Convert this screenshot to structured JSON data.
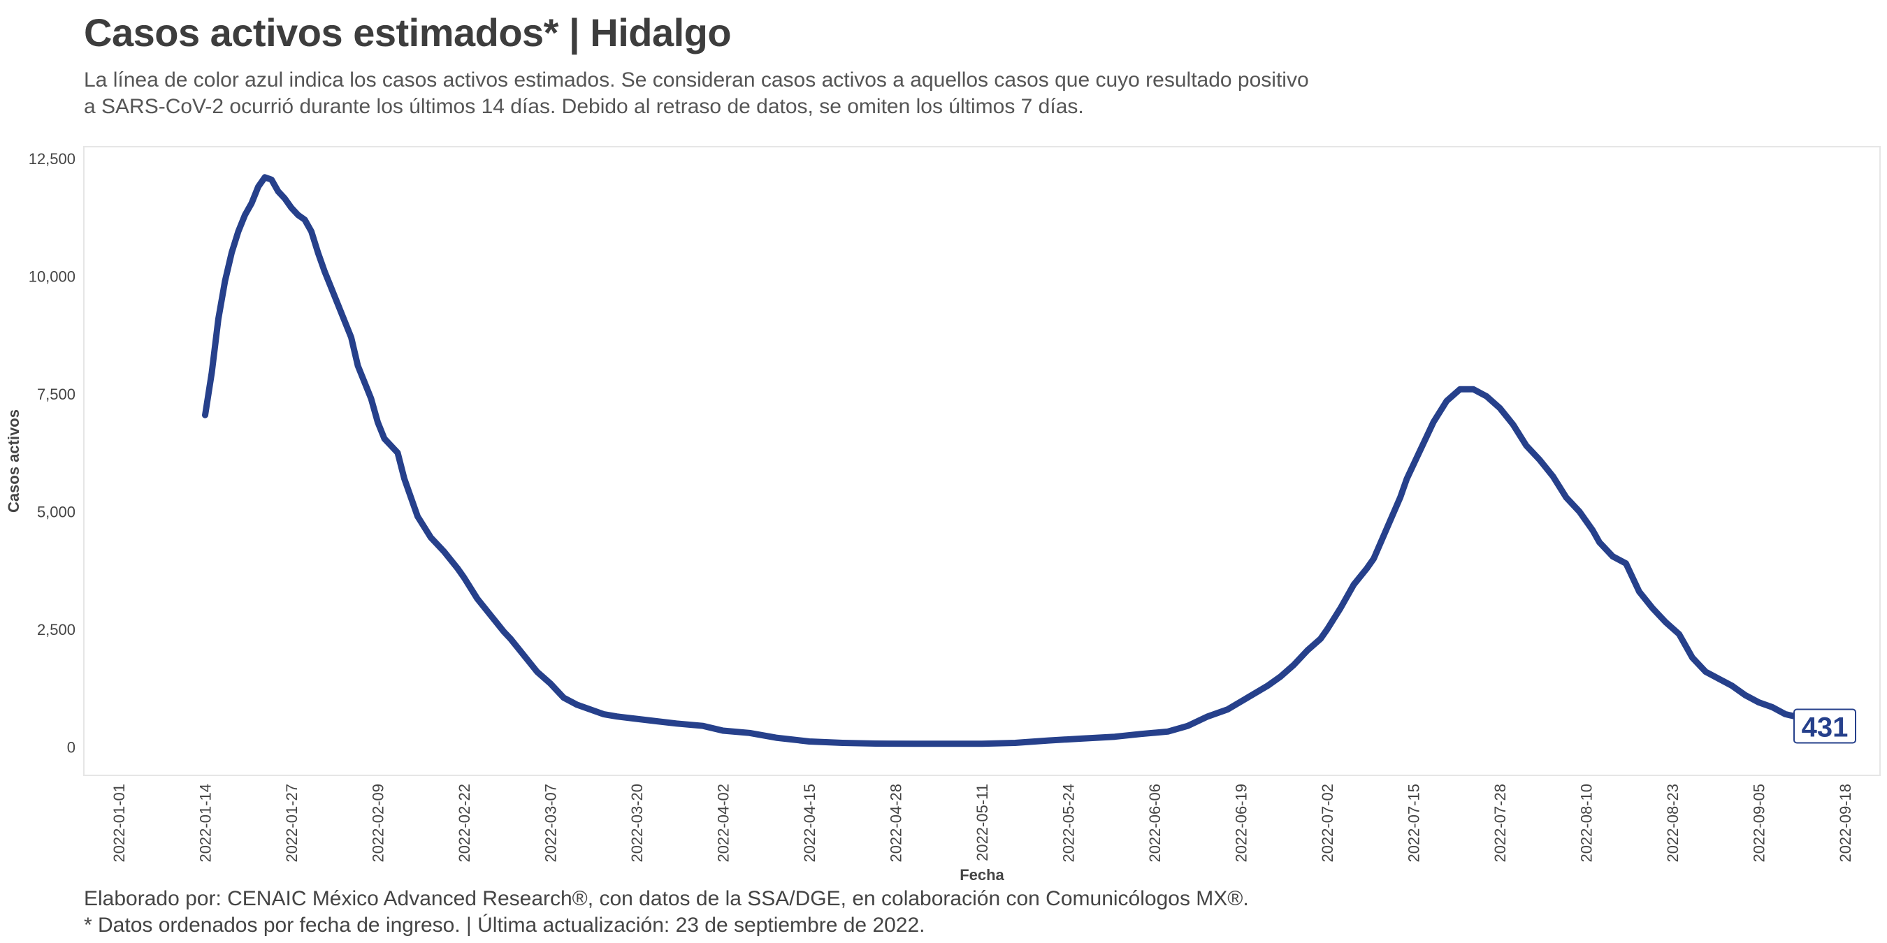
{
  "header": {
    "title": "Casos activos estimados* | Hidalgo",
    "subtitle_line1": "La línea de color azul indica los casos activos estimados. Se consideran casos activos a aquellos casos que cuyo resultado positivo",
    "subtitle_line2": "a SARS-CoV-2 ocurrió durante los últimos 14 días. Debido al retraso de datos, se omiten los últimos 7 días."
  },
  "footer": {
    "line1": "Elaborado por: CENAIC México Advanced Research®, con datos de la SSA/DGE, en colaboración con Comunicólogos MX®.",
    "line2": "* Datos ordenados por fecha de ingreso. | Última actualización: 23 de septiembre de 2022."
  },
  "colors": {
    "line": "#26408b",
    "panel_border": "#e6e6e6"
  },
  "chart_data": {
    "type": "line",
    "xlabel": "Fecha",
    "ylabel": "Casos activos",
    "ylim": [
      -600,
      12750
    ],
    "xlim": [
      "2022-01-01",
      "2022-09-18"
    ],
    "x_ticks": [
      "2022-01-01",
      "2022-01-14",
      "2022-01-27",
      "2022-02-09",
      "2022-02-22",
      "2022-03-07",
      "2022-03-20",
      "2022-04-02",
      "2022-04-15",
      "2022-04-28",
      "2022-05-11",
      "2022-05-24",
      "2022-06-06",
      "2022-06-19",
      "2022-07-02",
      "2022-07-15",
      "2022-07-28",
      "2022-08-10",
      "2022-08-23",
      "2022-09-05",
      "2022-09-18"
    ],
    "y_ticks": [
      0,
      2500,
      5000,
      7500,
      10000,
      12500
    ],
    "y_tick_labels": [
      "0",
      "2,500",
      "5,000",
      "7,500",
      "10,000",
      "12,500"
    ],
    "grid": false,
    "end_label": "431",
    "end_point": {
      "x": "2022-09-16",
      "y": 431
    },
    "x": [
      "2022-01-14",
      "2022-01-15",
      "2022-01-16",
      "2022-01-17",
      "2022-01-18",
      "2022-01-19",
      "2022-01-20",
      "2022-01-21",
      "2022-01-22",
      "2022-01-23",
      "2022-01-24",
      "2022-01-25",
      "2022-01-26",
      "2022-01-27",
      "2022-01-28",
      "2022-01-29",
      "2022-01-30",
      "2022-01-31",
      "2022-02-01",
      "2022-02-02",
      "2022-02-03",
      "2022-02-05",
      "2022-02-06",
      "2022-02-07",
      "2022-02-08",
      "2022-02-09",
      "2022-02-10",
      "2022-02-11",
      "2022-02-12",
      "2022-02-13",
      "2022-02-14",
      "2022-02-15",
      "2022-02-17",
      "2022-02-19",
      "2022-02-21",
      "2022-02-22",
      "2022-02-24",
      "2022-02-26",
      "2022-02-28",
      "2022-03-01",
      "2022-03-03",
      "2022-03-05",
      "2022-03-07",
      "2022-03-09",
      "2022-03-11",
      "2022-03-13",
      "2022-03-15",
      "2022-03-17",
      "2022-03-20",
      "2022-03-23",
      "2022-03-26",
      "2022-03-30",
      "2022-04-02",
      "2022-04-06",
      "2022-04-10",
      "2022-04-15",
      "2022-04-20",
      "2022-04-25",
      "2022-05-01",
      "2022-05-06",
      "2022-05-11",
      "2022-05-16",
      "2022-05-21",
      "2022-05-26",
      "2022-05-31",
      "2022-06-04",
      "2022-06-08",
      "2022-06-11",
      "2022-06-14",
      "2022-06-17",
      "2022-06-20",
      "2022-06-23",
      "2022-06-25",
      "2022-06-27",
      "2022-06-29",
      "2022-07-01",
      "2022-07-02",
      "2022-07-04",
      "2022-07-06",
      "2022-07-08",
      "2022-07-09",
      "2022-07-11",
      "2022-07-13",
      "2022-07-14",
      "2022-07-15",
      "2022-07-16",
      "2022-07-18",
      "2022-07-20",
      "2022-07-22",
      "2022-07-24",
      "2022-07-26",
      "2022-07-28",
      "2022-07-30",
      "2022-08-01",
      "2022-08-03",
      "2022-08-05",
      "2022-08-07",
      "2022-08-09",
      "2022-08-11",
      "2022-08-12",
      "2022-08-14",
      "2022-08-16",
      "2022-08-18",
      "2022-08-20",
      "2022-08-22",
      "2022-08-24",
      "2022-08-26",
      "2022-08-28",
      "2022-08-30",
      "2022-09-01",
      "2022-09-03",
      "2022-09-05",
      "2022-09-07",
      "2022-09-09",
      "2022-09-12",
      "2022-09-14",
      "2022-09-16"
    ],
    "series": [
      {
        "values": [
          7050,
          7950,
          9100,
          9900,
          10500,
          10950,
          11300,
          11550,
          11900,
          12100,
          12050,
          11800,
          11650,
          11450,
          11300,
          11200,
          10950,
          10500,
          10100,
          9750,
          9400,
          8700,
          8100,
          7750,
          7400,
          6900,
          6550,
          6400,
          6250,
          5700,
          5300,
          4900,
          4450,
          4150,
          3800,
          3600,
          3150,
          2800,
          2450,
          2300,
          1950,
          1600,
          1350,
          1050,
          900,
          800,
          700,
          650,
          600,
          550,
          500,
          450,
          350,
          300,
          200,
          120,
          90,
          75,
          70,
          70,
          70,
          90,
          140,
          180,
          220,
          280,
          330,
          450,
          650,
          800,
          1050,
          1300,
          1500,
          1750,
          2050,
          2300,
          2500,
          2950,
          3450,
          3800,
          4000,
          4650,
          5300,
          5700,
          6000,
          6300,
          6900,
          7350,
          7600,
          7600,
          7450,
          7200,
          6850,
          6400,
          6100,
          5750,
          5300,
          5000,
          4600,
          4350,
          4050,
          3900,
          3300,
          2950,
          2650,
          2400,
          1900,
          1600,
          1450,
          1300,
          1100,
          950,
          850,
          700,
          600,
          500,
          431
        ]
      }
    ]
  }
}
